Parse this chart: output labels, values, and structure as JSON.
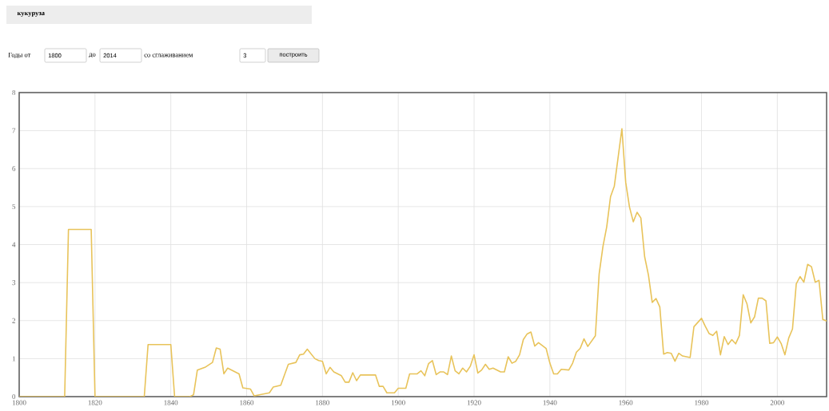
{
  "chart_data": {
    "type": "line",
    "title": "кукуруза",
    "annotations": [
      "Годы от",
      "1800",
      "до",
      "2014",
      "со сглаживанием",
      "3",
      "построить"
    ],
    "x": [
      1800,
      1812,
      1813,
      1819,
      1820,
      1833,
      1834,
      1840,
      1841,
      1845,
      1846,
      1847,
      1849,
      1851,
      1852,
      1853,
      1854,
      1855,
      1858,
      1859,
      1861,
      1862,
      1866,
      1867,
      1869,
      1871,
      1873,
      1874,
      1875,
      1876,
      1878,
      1879,
      1880,
      1881,
      1882,
      1883,
      1885,
      1886,
      1887,
      1888,
      1889,
      1890,
      1894,
      1895,
      1896,
      1897,
      1899,
      1900,
      1902,
      1903,
      1905,
      1906,
      1907,
      1908,
      1909,
      1910,
      1911,
      1912,
      1913,
      1914,
      1915,
      1916,
      1917,
      1918,
      1919,
      1920,
      1921,
      1922,
      1923,
      1924,
      1925,
      1927,
      1928,
      1929,
      1930,
      1931,
      1932,
      1933,
      1934,
      1935,
      1936,
      1937,
      1939,
      1940,
      1941,
      1942,
      1943,
      1945,
      1946,
      1947,
      1948,
      1949,
      1950,
      1952,
      1953,
      1954,
      1955,
      1956,
      1957,
      1959,
      1960,
      1961,
      1962,
      1963,
      1964,
      1965,
      1966,
      1967,
      1968,
      1969,
      1970,
      1971,
      1972,
      1973,
      1974,
      1975,
      1977,
      1978,
      1980,
      1981,
      1982,
      1983,
      1984,
      1985,
      1986,
      1987,
      1988,
      1989,
      1990,
      1991,
      1992,
      1993,
      1994,
      1995,
      1996,
      1997,
      1998,
      1999,
      2000,
      2001,
      2002,
      2003,
      2004,
      2005,
      2006,
      2007,
      2008,
      2009,
      2010,
      2011,
      2012,
      2013
    ],
    "values": [
      0,
      0,
      4.4,
      4.4,
      0,
      0,
      1.37,
      1.37,
      0,
      0,
      0.05,
      0.7,
      0.77,
      0.9,
      1.28,
      1.25,
      0.6,
      0.75,
      0.6,
      0.23,
      0.2,
      0.02,
      0.1,
      0.25,
      0.3,
      0.85,
      0.9,
      1.1,
      1.12,
      1.25,
      1.0,
      0.95,
      0.93,
      0.6,
      0.77,
      0.65,
      0.55,
      0.38,
      0.38,
      0.63,
      0.42,
      0.57,
      0.57,
      0.27,
      0.27,
      0.1,
      0.1,
      0.22,
      0.22,
      0.6,
      0.6,
      0.68,
      0.55,
      0.87,
      0.95,
      0.58,
      0.65,
      0.65,
      0.58,
      1.07,
      0.68,
      0.6,
      0.75,
      0.65,
      0.8,
      1.1,
      0.62,
      0.7,
      0.85,
      0.72,
      0.75,
      0.65,
      0.65,
      1.05,
      0.88,
      0.93,
      1.1,
      1.5,
      1.65,
      1.7,
      1.33,
      1.42,
      1.27,
      0.88,
      0.6,
      0.6,
      0.72,
      0.7,
      0.88,
      1.17,
      1.27,
      1.52,
      1.32,
      1.6,
      3.23,
      3.95,
      4.47,
      5.26,
      5.54,
      7.05,
      5.64,
      4.99,
      4.6,
      4.85,
      4.7,
      3.68,
      3.2,
      2.48,
      2.58,
      2.36,
      1.12,
      1.16,
      1.14,
      0.93,
      1.14,
      1.07,
      1.03,
      1.84,
      2.06,
      1.85,
      1.66,
      1.61,
      1.72,
      1.1,
      1.58,
      1.37,
      1.5,
      1.39,
      1.61,
      2.68,
      2.44,
      1.94,
      2.1,
      2.59,
      2.59,
      2.52,
      1.4,
      1.42,
      1.57,
      1.4,
      1.1,
      1.54,
      1.78,
      2.97,
      3.16,
      3.01,
      3.48,
      3.42,
      3.01,
      3.06,
      2.03,
      1.99
    ],
    "color": "#e8c35a",
    "xlim": [
      1800,
      2013
    ],
    "ylim": [
      0,
      8
    ],
    "xticks": [
      1800,
      1820,
      1840,
      1860,
      1880,
      1900,
      1920,
      1940,
      1960,
      1980,
      2000
    ],
    "yticks": [
      0,
      1,
      2,
      3,
      4,
      5,
      6,
      7,
      8
    ],
    "grid": true
  }
}
